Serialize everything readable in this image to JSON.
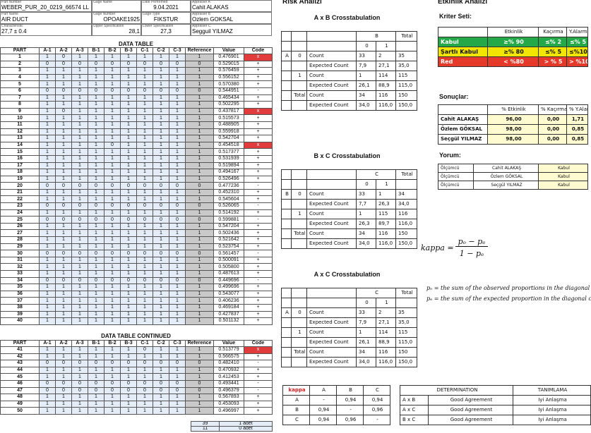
{
  "header": {
    "fields": [
      {
        "label": "Part Number",
        "value": "WEBER_PUR_20_0219_66574 LL"
      },
      {
        "label": "Gage Name"
      },
      {
        "label": "Date Performed",
        "value": "9.04.2021"
      },
      {
        "label": "Appraiser A",
        "value": "Cahit ALAKAS"
      },
      {
        "label": "Part Name",
        "value": "AIR DUCT"
      },
      {
        "label": "Gage Number",
        "value": "OPOAKE1925"
      },
      {
        "label": "Gage Type",
        "value": "FIKSTUR"
      },
      {
        "label": "Appraiser B",
        "value": "Ozlem GOKSAL"
      },
      {
        "label": "Characteristic",
        "value": "27,7 ± 0.4"
      },
      {
        "label": "Upper Specification",
        "value": "28,1"
      },
      {
        "label": "Lower Specification",
        "value": "27,3"
      },
      {
        "label": "Appraiser C",
        "value": "Segguil YILMAZ"
      }
    ]
  },
  "data_table": {
    "title": "DATA TABLE",
    "columns": [
      "PART",
      "A-1",
      "A-2",
      "A-3",
      "B-1",
      "B-2",
      "B-3",
      "C-1",
      "C-2",
      "C-3",
      "Reference",
      "Value",
      "Code"
    ],
    "rows": [
      [
        1,
        1,
        0,
        1,
        1,
        1,
        1,
        1,
        1,
        1,
        1,
        "0.476901",
        "x"
      ],
      [
        2,
        0,
        0,
        0,
        0,
        0,
        0,
        0,
        0,
        0,
        0,
        "0.529015",
        "+"
      ],
      [
        3,
        1,
        1,
        1,
        1,
        1,
        1,
        1,
        1,
        1,
        1,
        "0.576459",
        "+"
      ],
      [
        4,
        1,
        1,
        1,
        1,
        1,
        1,
        1,
        1,
        1,
        1,
        "0.556152",
        "+"
      ],
      [
        5,
        1,
        1,
        1,
        1,
        1,
        1,
        1,
        1,
        1,
        1,
        "0.570380",
        "+"
      ],
      [
        6,
        0,
        0,
        0,
        0,
        0,
        0,
        0,
        0,
        0,
        0,
        "0.544951",
        "-"
      ],
      [
        7,
        1,
        1,
        1,
        1,
        1,
        1,
        1,
        1,
        1,
        1,
        "0.465434",
        "+"
      ],
      [
        8,
        1,
        1,
        1,
        1,
        1,
        1,
        1,
        1,
        1,
        1,
        "0.502295",
        "+"
      ],
      [
        9,
        1,
        0,
        1,
        1,
        1,
        1,
        1,
        1,
        1,
        1,
        "0.437817",
        "x"
      ],
      [
        10,
        1,
        1,
        1,
        1,
        1,
        1,
        1,
        1,
        1,
        1,
        "0.515573",
        "+"
      ],
      [
        11,
        1,
        1,
        1,
        1,
        1,
        1,
        1,
        1,
        1,
        1,
        "0.488905",
        "+"
      ],
      [
        12,
        1,
        1,
        1,
        1,
        1,
        1,
        1,
        1,
        1,
        1,
        "0.559918",
        "+"
      ],
      [
        13,
        1,
        1,
        1,
        1,
        1,
        1,
        1,
        1,
        1,
        1,
        "0.542704",
        "+"
      ],
      [
        14,
        1,
        1,
        1,
        1,
        0,
        1,
        1,
        1,
        1,
        1,
        "0.454518",
        "x"
      ],
      [
        15,
        1,
        1,
        1,
        1,
        1,
        1,
        1,
        1,
        1,
        1,
        "0.517377",
        "+"
      ],
      [
        16,
        1,
        1,
        1,
        1,
        1,
        1,
        1,
        1,
        1,
        1,
        "0.531939",
        "+"
      ],
      [
        17,
        1,
        1,
        1,
        1,
        1,
        1,
        1,
        1,
        1,
        1,
        "0.519894",
        "+"
      ],
      [
        18,
        1,
        1,
        1,
        1,
        1,
        1,
        1,
        1,
        1,
        1,
        "0.494167",
        "+"
      ],
      [
        19,
        1,
        1,
        1,
        1,
        1,
        1,
        1,
        1,
        1,
        1,
        "0.526496",
        "+"
      ],
      [
        20,
        0,
        0,
        0,
        0,
        0,
        0,
        0,
        0,
        0,
        0,
        "0.477236",
        "-"
      ],
      [
        21,
        1,
        1,
        1,
        1,
        1,
        1,
        1,
        1,
        1,
        1,
        "0.452310",
        "+"
      ],
      [
        22,
        1,
        1,
        1,
        1,
        1,
        1,
        1,
        1,
        1,
        1,
        "0.545604",
        "+"
      ],
      [
        23,
        0,
        0,
        0,
        0,
        0,
        0,
        0,
        0,
        0,
        0,
        "0.526065",
        "-"
      ],
      [
        24,
        1,
        1,
        1,
        1,
        1,
        1,
        1,
        1,
        1,
        1,
        "0.514192",
        "+"
      ],
      [
        25,
        0,
        0,
        0,
        0,
        0,
        0,
        0,
        0,
        0,
        0,
        "0.599881",
        "-"
      ],
      [
        26,
        1,
        1,
        1,
        1,
        1,
        1,
        1,
        1,
        1,
        1,
        "0.547204",
        "+"
      ],
      [
        27,
        1,
        1,
        1,
        1,
        1,
        1,
        1,
        1,
        1,
        1,
        "0.502436",
        "+"
      ],
      [
        28,
        1,
        1,
        1,
        1,
        1,
        1,
        1,
        1,
        1,
        1,
        "0.521642",
        "+"
      ],
      [
        29,
        1,
        1,
        1,
        1,
        1,
        1,
        1,
        1,
        1,
        1,
        "0.523754",
        "+"
      ],
      [
        30,
        0,
        0,
        0,
        0,
        0,
        0,
        0,
        0,
        0,
        0,
        "0.561457",
        "-"
      ],
      [
        31,
        1,
        1,
        1,
        1,
        1,
        1,
        1,
        1,
        1,
        1,
        "0.500091",
        "+"
      ],
      [
        32,
        1,
        1,
        1,
        1,
        1,
        1,
        1,
        1,
        1,
        1,
        "0.505800",
        "+"
      ],
      [
        33,
        1,
        1,
        1,
        1,
        1,
        1,
        1,
        1,
        1,
        1,
        "0.487613",
        "+"
      ],
      [
        34,
        0,
        0,
        0,
        0,
        0,
        0,
        0,
        0,
        0,
        0,
        "0.449696",
        "-"
      ],
      [
        35,
        1,
        1,
        1,
        1,
        1,
        1,
        1,
        1,
        1,
        1,
        "0.499696",
        "+"
      ],
      [
        36,
        1,
        1,
        1,
        1,
        1,
        1,
        1,
        1,
        1,
        1,
        "0.543077",
        "+"
      ],
      [
        37,
        1,
        1,
        1,
        1,
        1,
        1,
        1,
        1,
        1,
        1,
        "0.406236",
        "+"
      ],
      [
        38,
        1,
        1,
        1,
        1,
        1,
        1,
        1,
        1,
        1,
        1,
        "0.469184",
        "+"
      ],
      [
        39,
        1,
        1,
        1,
        1,
        1,
        1,
        1,
        1,
        1,
        1,
        "0.427837",
        "+"
      ],
      [
        40,
        1,
        1,
        1,
        1,
        1,
        1,
        1,
        1,
        1,
        1,
        "0.501132",
        "+"
      ]
    ]
  },
  "data_table_continued": {
    "title": "DATA TABLE CONTINUED",
    "columns": [
      "PART",
      "A-1",
      "A-2",
      "A-3",
      "B-1",
      "B-2",
      "B-3",
      "C-1",
      "C-2",
      "C-3",
      "Reference",
      "Value",
      "Code"
    ],
    "rows": [
      [
        41,
        1,
        1,
        1,
        1,
        1,
        1,
        0,
        1,
        1,
        1,
        "0.513779",
        "x"
      ],
      [
        42,
        1,
        1,
        1,
        1,
        1,
        1,
        1,
        1,
        1,
        1,
        "0.566575",
        "+"
      ],
      [
        43,
        0,
        0,
        0,
        0,
        0,
        0,
        0,
        0,
        0,
        0,
        "0.482410",
        "-"
      ],
      [
        44,
        1,
        1,
        1,
        1,
        1,
        1,
        1,
        1,
        1,
        1,
        "0.470932",
        "+"
      ],
      [
        45,
        1,
        1,
        1,
        1,
        1,
        1,
        1,
        1,
        1,
        1,
        "0.412453",
        "+"
      ],
      [
        46,
        0,
        0,
        0,
        0,
        0,
        0,
        0,
        0,
        0,
        0,
        "0.493441",
        "-"
      ],
      [
        47,
        0,
        0,
        0,
        0,
        0,
        0,
        0,
        0,
        0,
        0,
        "0.496379",
        "-"
      ],
      [
        48,
        1,
        1,
        1,
        1,
        1,
        1,
        1,
        1,
        1,
        1,
        "0.567893",
        "+"
      ],
      [
        49,
        1,
        1,
        1,
        1,
        1,
        1,
        1,
        1,
        1,
        1,
        "0.453093",
        "+"
      ],
      [
        50,
        1,
        1,
        1,
        1,
        1,
        1,
        1,
        1,
        1,
        1,
        "0.496997",
        "+"
      ]
    ]
  },
  "summary": [
    [
      "39",
      "1 adet"
    ],
    [
      "11",
      "0 adet"
    ]
  ],
  "risk_title": "Risk Analizi",
  "crosstabs": [
    {
      "title": "A x B Crosstabulation",
      "row_var": "A",
      "col_var": "B",
      "levels": [
        "0",
        "1"
      ],
      "total_label": "Total",
      "count_label": "Count",
      "expected_label": "Expected Count",
      "total_row_label": "Total",
      "rows": [
        {
          "counts": [
            "33",
            "2",
            "35"
          ],
          "expected": [
            "7,9",
            "27,1",
            "35,0"
          ]
        },
        {
          "counts": [
            "1",
            "114",
            "115"
          ],
          "expected": [
            "26,1",
            "88,9",
            "115,0"
          ]
        },
        {
          "counts": [
            "34",
            "116",
            "150"
          ],
          "expected": [
            "34,0",
            "116,0",
            "150,0"
          ]
        }
      ]
    },
    {
      "title": "B x C Crosstabulation",
      "row_var": "B",
      "col_var": "C",
      "levels": [
        "0",
        "1"
      ],
      "total_label": "Total",
      "count_label": "Count",
      "expected_label": "Expected Count",
      "total_row_label": "Total",
      "rows": [
        {
          "counts": [
            "33",
            "1",
            "34"
          ],
          "expected": [
            "7,7",
            "26,3",
            "34,0"
          ]
        },
        {
          "counts": [
            "1",
            "115",
            "116"
          ],
          "expected": [
            "26,3",
            "89,7",
            "116,0"
          ]
        },
        {
          "counts": [
            "34",
            "116",
            "150"
          ],
          "expected": [
            "34,0",
            "116,0",
            "150,0"
          ]
        }
      ]
    },
    {
      "title": "A x C Crosstabulation",
      "row_var": "A",
      "col_var": "C",
      "levels": [
        "0",
        "1"
      ],
      "total_label": "Total",
      "count_label": "Count",
      "expected_label": "Expected Count",
      "total_row_label": "Total",
      "rows": [
        {
          "counts": [
            "33",
            "2",
            "35"
          ],
          "expected": [
            "7,9",
            "27,1",
            "35,0"
          ]
        },
        {
          "counts": [
            "1",
            "114",
            "115"
          ],
          "expected": [
            "26,1",
            "88,9",
            "115,0"
          ]
        },
        {
          "counts": [
            "34",
            "116",
            "150"
          ],
          "expected": [
            "34,0",
            "116,0",
            "150,0"
          ]
        }
      ]
    }
  ],
  "formula": {
    "lhs": "kappa =",
    "numerator": "pₒ − pₑ",
    "denominator": "1 − pₑ",
    "notes": [
      "pₒ = the sum of the observed proportions in the diagonal cells",
      "pₑ = the sum of the expected proportion in the diagonal cells"
    ]
  },
  "kappa_table": {
    "headers": [
      "kappa",
      "A",
      "B",
      "C"
    ],
    "rows": [
      [
        "A",
        "-",
        "0,94",
        "0,94"
      ],
      [
        "B",
        "0,94",
        "-",
        "0,96"
      ],
      [
        "C",
        "0,94",
        "0,96",
        "-"
      ]
    ]
  },
  "determination": {
    "headers": [
      "DETERMINATION",
      "TANIMLAMA"
    ],
    "rows": [
      [
        "A x B",
        "Good Agreement",
        "Iyi Anlaşma"
      ],
      [
        "A x C",
        "Good Agreement",
        "Iyi Anlaşma"
      ],
      [
        "B x C",
        "Good Agreement",
        "Iyi Anlaşma"
      ]
    ]
  },
  "efficiency": {
    "title": "Etkinlik Analizi",
    "criteria_label": "Kriter Seti:",
    "criteria_columns": [
      "Etkinlik",
      "Kaçırma",
      "Y.Alarm"
    ],
    "criteria": [
      [
        "Kabul",
        "≥% 90",
        "≤% 2",
        "≤% 5"
      ],
      [
        "Şartlı Kabul",
        "≥% 80",
        "≤% 5",
        "≤%10"
      ],
      [
        "Red",
        "< %80",
        "> % 5",
        "> %10"
      ]
    ],
    "results_label": "Sonuçlar:",
    "results_columns": [
      "% Etkinlik",
      "% Kaçırma",
      "% Y.Alarm"
    ],
    "results": [
      [
        "Cahit ALAKAŞ",
        "96,00",
        "0,00",
        "1,71"
      ],
      [
        "Özlem GÖKSAL",
        "98,00",
        "0,00",
        "0,85"
      ],
      [
        "Seçgül YILMAZ",
        "98,00",
        "0,00",
        "0,85"
      ]
    ],
    "comment_label": "Yorum:",
    "comments": [
      [
        "Ölçümcü",
        "Cahit ALAKAŞ",
        "Kabul"
      ],
      [
        "Ölçümcü",
        "Özlem GÖKSAL",
        "Kabul"
      ],
      [
        "Ölçümcü",
        "Seçgül YILMAZ",
        "Kabul"
      ]
    ]
  }
}
